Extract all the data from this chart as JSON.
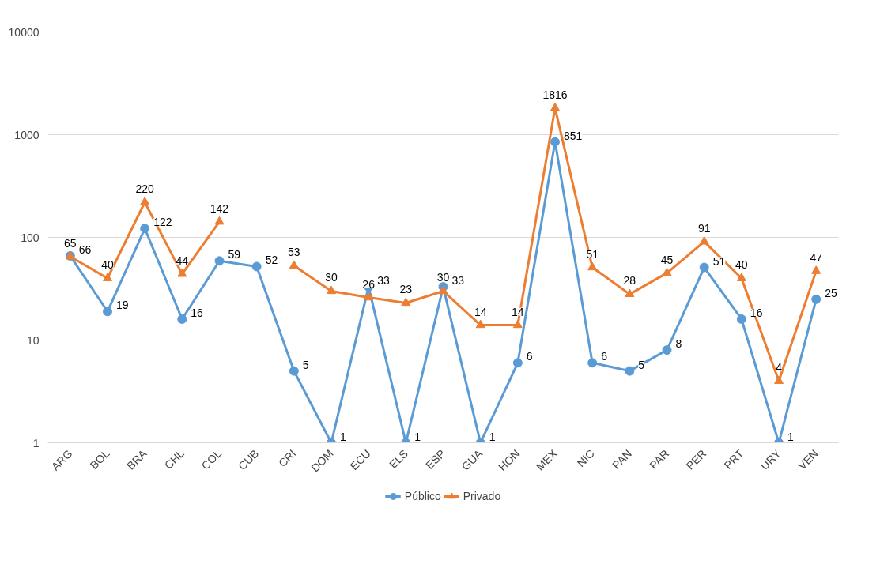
{
  "chart_data": {
    "type": "line",
    "categories": [
      "ARG",
      "BOL",
      "BRA",
      "CHL",
      "COL",
      "CUB",
      "CRI",
      "DOM",
      "ECU",
      "ELS",
      "ESP",
      "GUA",
      "HON",
      "MEX",
      "NIC",
      "PAN",
      "PAR",
      "PER",
      "PRT",
      "URY",
      "VEN"
    ],
    "series": [
      {
        "name": "Público",
        "color": "#5b9bd5",
        "marker": "circle",
        "values": [
          66,
          19,
          122,
          16,
          59,
          52,
          5,
          1,
          33,
          1,
          33,
          1,
          6,
          851,
          6,
          5,
          8,
          51,
          16,
          1,
          25
        ]
      },
      {
        "name": "Privado",
        "color": "#ed7d31",
        "marker": "triangle",
        "values": [
          65,
          40,
          220,
          44,
          142,
          null,
          53,
          30,
          26,
          23,
          30,
          14,
          14,
          1816,
          51,
          28,
          45,
          91,
          40,
          4,
          47
        ]
      }
    ],
    "log": "y",
    "ylim": [
      1,
      10000
    ],
    "yticks": [
      1,
      10,
      100,
      1000,
      10000
    ],
    "grid": "y",
    "legend": "bottom",
    "data_labels": true,
    "line_style": "solid"
  }
}
